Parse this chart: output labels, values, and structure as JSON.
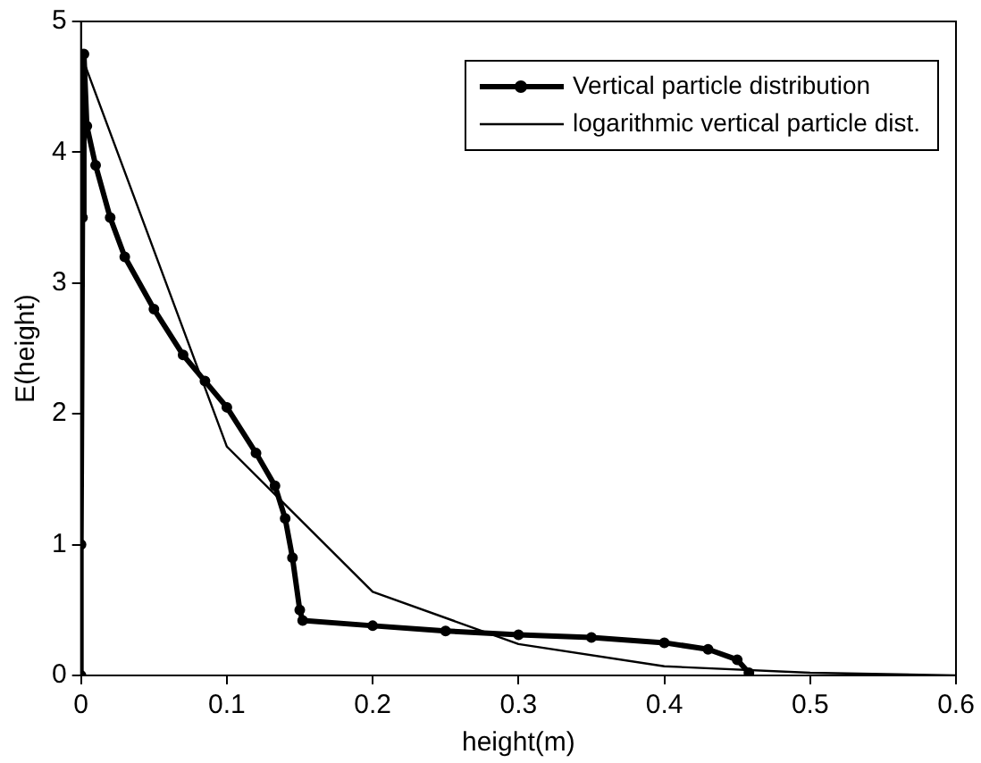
{
  "chart_data": {
    "type": "line",
    "xlabel": "height(m)",
    "ylabel": "E(height)",
    "xlim": [
      0,
      0.6
    ],
    "ylim": [
      0,
      5
    ],
    "xticks": [
      0,
      0.1,
      0.2,
      0.3,
      0.4,
      0.5,
      0.6
    ],
    "yticks": [
      0,
      1,
      2,
      3,
      4,
      5
    ],
    "grid": false,
    "legend": "top right",
    "series": [
      {
        "name": "Vertical particle distribution",
        "color": "#000000",
        "marker": "circle",
        "x": [
          0,
          0,
          0.001,
          0.002,
          0.004,
          0.01,
          0.02,
          0.03,
          0.05,
          0.07,
          0.085,
          0.1,
          0.12,
          0.133,
          0.14,
          0.145,
          0.15,
          0.152,
          0.2,
          0.25,
          0.3,
          0.35,
          0.4,
          0.43,
          0.45,
          0.458
        ],
        "values": [
          0,
          1,
          3.5,
          4.75,
          4.2,
          3.9,
          3.5,
          3.2,
          2.8,
          2.45,
          2.25,
          2.05,
          1.7,
          1.45,
          1.2,
          0.9,
          0.5,
          0.42,
          0.38,
          0.34,
          0.31,
          0.29,
          0.25,
          0.2,
          0.12,
          0.02
        ]
      },
      {
        "name": "logarithmic vertical particle dist.",
        "color": "#000000",
        "marker": "none",
        "x": [
          0,
          0.1,
          0.2,
          0.3,
          0.4,
          0.5,
          0.6
        ],
        "values": [
          4.75,
          1.75,
          0.64,
          0.24,
          0.07,
          0.02,
          0
        ]
      }
    ]
  }
}
